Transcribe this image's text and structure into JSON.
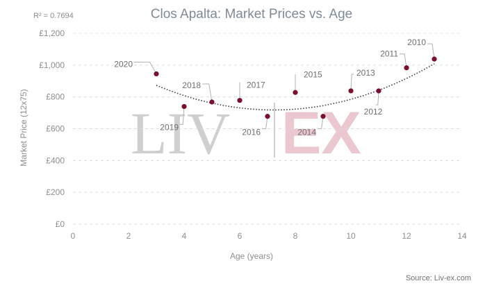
{
  "chart_data": {
    "type": "scatter",
    "title": "Clos Apalta: Market Prices vs. Age",
    "annotation": "R² = 0.7694",
    "xlabel": "Age (years)",
    "ylabel": "Market Price (12x75)",
    "xlim": [
      0,
      14
    ],
    "ylim": [
      0,
      1200
    ],
    "x_ticks": [
      "0",
      "2",
      "4",
      "6",
      "8",
      "10",
      "12",
      "14"
    ],
    "y_ticks": [
      "£0",
      "£200",
      "£400",
      "£600",
      "£800",
      "£1,000",
      "£1,200"
    ],
    "grid": true,
    "trendline": "polynomial",
    "trend_coefficients": [
      1172,
      -125.7,
      8.7
    ],
    "point_color": "#7a0f2e",
    "points": [
      {
        "label": "2020",
        "x": 3,
        "y": 945
      },
      {
        "label": "2019",
        "x": 4,
        "y": 740
      },
      {
        "label": "2018",
        "x": 5,
        "y": 768
      },
      {
        "label": "2017",
        "x": 6,
        "y": 778
      },
      {
        "label": "2016",
        "x": 7,
        "y": 678
      },
      {
        "label": "2015",
        "x": 8,
        "y": 828
      },
      {
        "label": "2014",
        "x": 9,
        "y": 678
      },
      {
        "label": "2013",
        "x": 10,
        "y": 838
      },
      {
        "label": "2012",
        "x": 11,
        "y": 838
      },
      {
        "label": "2011",
        "x": 12,
        "y": 983
      },
      {
        "label": "2010",
        "x": 13,
        "y": 1038
      }
    ],
    "source": "Source: Liv-ex.com"
  },
  "watermark": {
    "left": "LIV",
    "right": "EX"
  }
}
